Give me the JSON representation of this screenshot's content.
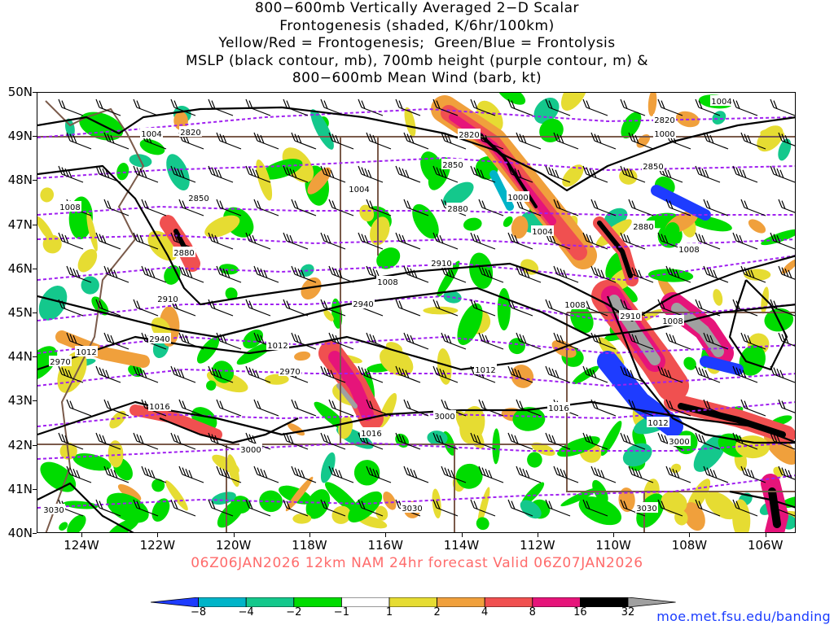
{
  "title": {
    "line1": "800−600mb Vertically Averaged 2−D Scalar",
    "line2": "Frontogenesis (shaded, K/6hr/100km)",
    "line3": "Yellow/Red = Frontogenesis;  Green/Blue = Frontolysis",
    "line4": "MSLP (black contour, mb), 700mb height (purple contour, m) &",
    "line5": "800−600mb Mean Wind (barb, kt)"
  },
  "valid_line": "06Z06JAN2026 12km NAM 24hr forecast Valid 06Z07JAN2026",
  "credit": "moe.met.fsu.edu/banding",
  "axes": {
    "lat_labels": [
      "50N",
      "49N",
      "48N",
      "47N",
      "46N",
      "45N",
      "44N",
      "43N",
      "42N",
      "41N",
      "40N"
    ],
    "lon_labels": [
      "124W",
      "122W",
      "120W",
      "118W",
      "116W",
      "114W",
      "112W",
      "110W",
      "108W",
      "106W"
    ]
  },
  "colorbar": {
    "labels": [
      "−8",
      "−4",
      "−2",
      "−1",
      "1",
      "2",
      "4",
      "8",
      "16",
      "32"
    ],
    "colors": [
      "#1e3cff",
      "#00b4c8",
      "#14c88c",
      "#00dc00",
      "#ffffff",
      "#e6dc32",
      "#f0a03c",
      "#f05050",
      "#e6147a",
      "#000000",
      "#a0a0a0"
    ]
  },
  "map_colors": {
    "state_border": "#7a5a4a",
    "mslp": "#000000",
    "height": "#a020f0",
    "green": "#00dc00",
    "teal": "#14c88c",
    "cyan": "#00b4c8",
    "blue": "#1e3cff",
    "yellow": "#e6dc32",
    "orange": "#f0a03c",
    "red": "#f05050",
    "magenta": "#e6147a",
    "black": "#000000",
    "gray": "#a0a0a0"
  },
  "mslp_labels": [
    "1004",
    "1008",
    "1000",
    "1004",
    "1004",
    "1008",
    "1008",
    "1008",
    "1008",
    "1012",
    "1012",
    "1012",
    "1016",
    "1016",
    "1016",
    "1012",
    "1004",
    "1000"
  ],
  "height_labels": [
    "2820",
    "2820",
    "2850",
    "2850",
    "2880",
    "2880",
    "2910",
    "2910",
    "2940",
    "2940",
    "2970",
    "2970",
    "3000",
    "3000",
    "3000",
    "3030",
    "3030",
    "2820",
    "2850",
    "2880",
    "2910",
    "3030"
  ]
}
